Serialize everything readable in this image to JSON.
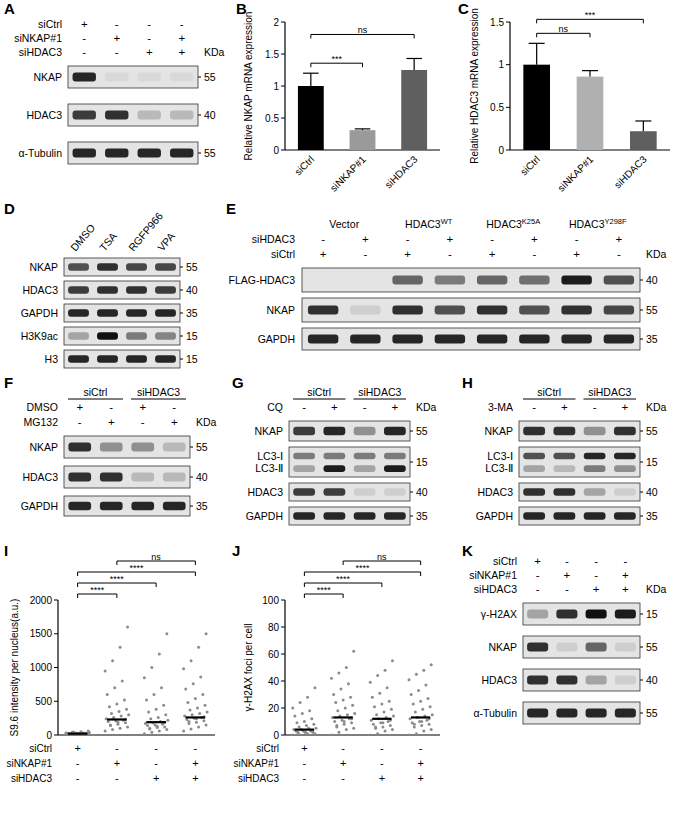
{
  "chart_data": [
    {
      "panel": "B",
      "type": "bar",
      "y_label": "Relative NKAP mRNA expression",
      "categories": [
        "siCtrl",
        "siNKAP#1",
        "siHDAC3"
      ],
      "values": [
        1.0,
        0.31,
        1.25
      ],
      "errors": [
        0.2,
        0.02,
        0.18
      ],
      "colors": [
        "#000000",
        "#9a9a9a",
        "#5f5f5f"
      ],
      "ylim": [
        0,
        2
      ],
      "yticks": [
        0,
        0.5,
        1,
        1.5,
        2
      ],
      "comparisons": [
        {
          "from": 0,
          "to": 1,
          "label": "***"
        },
        {
          "from": 0,
          "to": 2,
          "label": "ns"
        }
      ]
    },
    {
      "panel": "C",
      "type": "bar",
      "y_label": "Relative HDAC3 mRNA expression",
      "categories": [
        "siCtrl",
        "siNKAP#1",
        "siHDAC3"
      ],
      "values": [
        1.0,
        0.86,
        0.22
      ],
      "errors": [
        0.25,
        0.07,
        0.12
      ],
      "colors": [
        "#000000",
        "#b0b0b0",
        "#5f5f5f"
      ],
      "ylim": [
        0,
        1.5
      ],
      "yticks": [
        0,
        0.5,
        1,
        1.5
      ],
      "comparisons": [
        {
          "from": 0,
          "to": 1,
          "label": "ns"
        },
        {
          "from": 0,
          "to": 2,
          "label": "***"
        }
      ]
    },
    {
      "panel": "I",
      "type": "strip",
      "y_label": "S9.6 intensity per nucleus(a.u.)",
      "categories": [
        null,
        null,
        null,
        null
      ],
      "conditions": [
        {
          "label": "siCtrl",
          "signs": [
            "+",
            "-",
            "-",
            "-"
          ]
        },
        {
          "label": "siNKAP#1",
          "signs": [
            "-",
            "+",
            "-",
            "+"
          ]
        },
        {
          "label": "siHDAC3",
          "signs": [
            "-",
            "-",
            "+",
            "+"
          ]
        }
      ],
      "points": [
        [
          5,
          8,
          10,
          12,
          15,
          18,
          20,
          22,
          25,
          28,
          30,
          32,
          35,
          38,
          40,
          12,
          15,
          20,
          25,
          18,
          10,
          8,
          22,
          30,
          45,
          50,
          60,
          14,
          16,
          26
        ],
        [
          60,
          80,
          100,
          120,
          140,
          160,
          180,
          200,
          210,
          220,
          240,
          260,
          280,
          300,
          320,
          350,
          380,
          420,
          460,
          520,
          600,
          700,
          800,
          950,
          1100,
          1300,
          1600,
          150,
          190,
          230
        ],
        [
          20,
          40,
          60,
          80,
          100,
          110,
          120,
          140,
          150,
          160,
          170,
          180,
          200,
          220,
          240,
          260,
          300,
          340,
          380,
          440,
          520,
          600,
          700,
          850,
          1000,
          1200,
          1500,
          90,
          130,
          190
        ],
        [
          60,
          90,
          120,
          150,
          170,
          190,
          210,
          230,
          250,
          260,
          280,
          300,
          320,
          340,
          370,
          400,
          440,
          480,
          540,
          600,
          680,
          760,
          860,
          980,
          1100,
          1300,
          1500,
          200,
          240,
          270
        ]
      ],
      "values": [
        20,
        230,
        190,
        260
      ],
      "color": "#8c8c8c",
      "ylim": [
        0,
        2000
      ],
      "yticks": [
        0,
        500,
        1000,
        1500,
        2000
      ],
      "comparisons": [
        {
          "from": 0,
          "to": 1,
          "label": "****"
        },
        {
          "from": 0,
          "to": 2,
          "label": "****"
        },
        {
          "from": 0,
          "to": 3,
          "label": "****"
        },
        {
          "from": 1,
          "to": 3,
          "label": "ns"
        }
      ]
    },
    {
      "panel": "J",
      "type": "strip",
      "y_label": "γ-H2AX foci per cell",
      "categories": [
        null,
        null,
        null,
        null
      ],
      "conditions": [
        {
          "label": "siCtrl",
          "signs": [
            "+",
            "-",
            "-",
            "-"
          ]
        },
        {
          "label": "siNKAP#1",
          "signs": [
            "-",
            "+",
            "-",
            "+"
          ]
        },
        {
          "label": "siHDAC3",
          "signs": [
            "-",
            "-",
            "+",
            "+"
          ]
        }
      ],
      "points": [
        [
          0,
          0,
          1,
          1,
          2,
          2,
          2,
          3,
          3,
          3,
          4,
          4,
          5,
          5,
          6,
          7,
          8,
          9,
          10,
          12,
          14,
          16,
          18,
          20,
          24,
          28,
          35,
          1,
          2,
          3
        ],
        [
          0,
          2,
          4,
          5,
          6,
          8,
          9,
          10,
          11,
          12,
          13,
          14,
          15,
          16,
          18,
          20,
          22,
          24,
          26,
          28,
          30,
          34,
          38,
          42,
          46,
          50,
          62,
          7,
          10,
          12
        ],
        [
          0,
          1,
          3,
          4,
          5,
          6,
          7,
          8,
          9,
          10,
          11,
          12,
          13,
          14,
          15,
          17,
          19,
          21,
          23,
          25,
          28,
          31,
          35,
          39,
          44,
          48,
          55,
          6,
          9,
          11
        ],
        [
          0,
          1,
          3,
          4,
          6,
          7,
          8,
          9,
          10,
          11,
          12,
          13,
          14,
          15,
          17,
          19,
          21,
          23,
          25,
          27,
          30,
          33,
          37,
          41,
          45,
          48,
          52,
          8,
          10,
          12
        ]
      ],
      "values": [
        4,
        13,
        12,
        13
      ],
      "color": "#8c8c8c",
      "ylim": [
        0,
        100
      ],
      "yticks": [
        0,
        20,
        40,
        60,
        80,
        100
      ],
      "comparisons": [
        {
          "from": 0,
          "to": 1,
          "label": "****"
        },
        {
          "from": 0,
          "to": 2,
          "label": "****"
        },
        {
          "from": 0,
          "to": 3,
          "label": "****"
        },
        {
          "from": 1,
          "to": 3,
          "label": "ns"
        }
      ]
    }
  ],
  "blots": [
    {
      "panel": "A",
      "kda_label": "KDa",
      "sign_rows": [
        {
          "label": "siCtrl",
          "signs": [
            "+",
            "-",
            "-",
            "-"
          ]
        },
        {
          "label": "siNKAP#1",
          "signs": [
            "-",
            "+",
            "-",
            "+"
          ]
        },
        {
          "label": "siHDAC3",
          "signs": [
            "-",
            "-",
            "+",
            "+"
          ]
        }
      ],
      "rows": [
        {
          "name": "NKAP",
          "kda": 55,
          "intensities": [
            0.9,
            0.05,
            0.05,
            0.05
          ]
        },
        {
          "name": "HDAC3",
          "kda": 40,
          "intensities": [
            0.8,
            0.85,
            0.2,
            0.2
          ]
        },
        {
          "name": "α-Tubulin",
          "kda": 55,
          "intensities": [
            0.9,
            0.9,
            0.9,
            0.9
          ]
        }
      ]
    },
    {
      "panel": "D",
      "lane_labels": [
        "DMSO",
        "TSA",
        "RGFP966",
        "VPA"
      ],
      "rows": [
        {
          "name": "NKAP",
          "kda": 55,
          "intensities": [
            0.7,
            0.85,
            0.75,
            0.75
          ]
        },
        {
          "name": "HDAC3",
          "kda": 40,
          "intensities": [
            0.8,
            0.85,
            0.85,
            0.8
          ]
        },
        {
          "name": "GAPDH",
          "kda": 35,
          "intensities": [
            0.9,
            0.9,
            0.9,
            0.9
          ]
        },
        {
          "name": "H3K9ac",
          "kda": 15,
          "intensities": [
            0.3,
            1.0,
            0.5,
            0.45
          ]
        },
        {
          "name": "H3",
          "kda": 15,
          "intensities": [
            0.9,
            0.9,
            0.9,
            0.9
          ]
        }
      ]
    },
    {
      "panel": "E",
      "kda_label": "KDa",
      "groups": [
        {
          "label": "Vector"
        },
        {
          "label": "HDAC3",
          "sup": "WT"
        },
        {
          "label": "HDAC3",
          "sup": "K25A"
        },
        {
          "label": "HDAC3",
          "sup": "Y298F"
        }
      ],
      "sign_rows": [
        {
          "label": "siHDAC3",
          "signs": [
            "-",
            "+",
            "-",
            "+",
            "-",
            "+",
            "-",
            "+"
          ]
        },
        {
          "label": "siCtrl",
          "signs": [
            "+",
            "-",
            "+",
            "-",
            "+",
            "-",
            "+",
            "-"
          ]
        }
      ],
      "rows": [
        {
          "name": "FLAG-HDAC3",
          "kda": 40,
          "intensities": [
            0,
            0,
            0.6,
            0.5,
            0.6,
            0.55,
            0.95,
            0.7
          ]
        },
        {
          "name": "NKAP",
          "kda": 55,
          "intensities": [
            0.85,
            0.1,
            0.85,
            0.7,
            0.85,
            0.7,
            0.85,
            0.75
          ]
        },
        {
          "name": "GAPDH",
          "kda": 35,
          "intensities": [
            0.9,
            0.9,
            0.9,
            0.9,
            0.9,
            0.9,
            0.9,
            0.9
          ]
        }
      ]
    },
    {
      "panel": "F",
      "kda_label": "KDa",
      "groups": [
        {
          "label": "siCtrl"
        },
        {
          "label": "siHDAC3"
        }
      ],
      "sign_rows": [
        {
          "label": "DMSO",
          "signs": [
            "+",
            "-",
            "+",
            "-"
          ]
        },
        {
          "label": "MG132",
          "signs": [
            "-",
            "+",
            "-",
            "+"
          ]
        }
      ],
      "rows": [
        {
          "name": "NKAP",
          "kda": 55,
          "intensities": [
            0.85,
            0.4,
            0.4,
            0.2
          ]
        },
        {
          "name": "HDAC3",
          "kda": 40,
          "intensities": [
            0.85,
            0.85,
            0.2,
            0.2
          ]
        },
        {
          "name": "GAPDH",
          "kda": 35,
          "intensities": [
            0.9,
            0.9,
            0.9,
            0.9
          ]
        }
      ]
    },
    {
      "panel": "G",
      "kda_label": "KDa",
      "groups": [
        {
          "label": "siCtrl"
        },
        {
          "label": "siHDAC3"
        }
      ],
      "sign_rows": [
        {
          "label": "CQ",
          "signs": [
            "-",
            "+",
            "-",
            "+"
          ]
        }
      ],
      "rows": [
        {
          "name": "NKAP",
          "kda": 55,
          "intensities": [
            0.8,
            0.9,
            0.4,
            0.9
          ]
        },
        {
          "names": [
            "LC3-Ⅰ",
            "LC3-Ⅱ"
          ],
          "kda": 15,
          "intensities": [
            [
              0.5,
              0.5,
              0.5,
              0.5
            ],
            [
              0.3,
              0.95,
              0.3,
              0.95
            ]
          ]
        },
        {
          "name": "HDAC3",
          "kda": 40,
          "intensities": [
            0.8,
            0.8,
            0.1,
            0.1
          ]
        },
        {
          "name": "GAPDH",
          "kda": 35,
          "intensities": [
            0.9,
            0.9,
            0.9,
            0.9
          ]
        }
      ]
    },
    {
      "panel": "H",
      "kda_label": "KDa",
      "groups": [
        {
          "label": "siCtrl"
        },
        {
          "label": "siHDAC3"
        }
      ],
      "sign_rows": [
        {
          "label": "3-MA",
          "signs": [
            "-",
            "+",
            "-",
            "+"
          ]
        }
      ],
      "rows": [
        {
          "name": "NKAP",
          "kda": 55,
          "intensities": [
            0.85,
            0.85,
            0.4,
            0.85
          ]
        },
        {
          "names": [
            "LC3-Ⅰ",
            "LC3-Ⅱ"
          ],
          "kda": 15,
          "intensities": [
            [
              0.7,
              0.7,
              0.9,
              0.9
            ],
            [
              0.3,
              0.2,
              0.5,
              0.4
            ]
          ]
        },
        {
          "name": "HDAC3",
          "kda": 40,
          "intensities": [
            0.85,
            0.85,
            0.3,
            0.1
          ]
        },
        {
          "name": "GAPDH",
          "kda": 35,
          "intensities": [
            0.9,
            0.9,
            0.9,
            0.9
          ]
        }
      ]
    },
    {
      "panel": "K",
      "kda_label": "KDa",
      "sign_rows": [
        {
          "label": "siCtrl",
          "signs": [
            "+",
            "-",
            "-",
            "-"
          ]
        },
        {
          "label": "siNKAP#1",
          "signs": [
            "-",
            "+",
            "-",
            "+"
          ]
        },
        {
          "label": "siHDAC3",
          "signs": [
            "-",
            "-",
            "+",
            "+"
          ]
        }
      ],
      "rows": [
        {
          "name": "γ-H2AX",
          "kda": 15,
          "intensities": [
            0.3,
            0.85,
            1.0,
            0.95
          ]
        },
        {
          "name": "NKAP",
          "kda": 55,
          "intensities": [
            0.85,
            0.1,
            0.6,
            0.1
          ]
        },
        {
          "name": "HDAC3",
          "kda": 40,
          "intensities": [
            0.85,
            0.85,
            0.3,
            0.1
          ]
        },
        {
          "name": "α-Tubulin",
          "kda": 55,
          "intensities": [
            0.9,
            0.9,
            0.9,
            0.9
          ]
        }
      ]
    }
  ]
}
